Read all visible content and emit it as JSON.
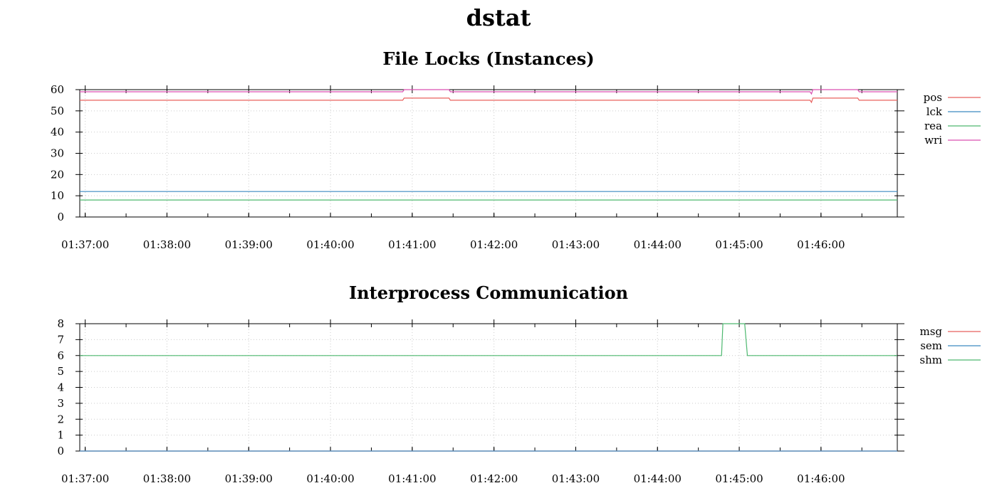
{
  "title": "dstat",
  "colors": {
    "series1": "#e8605d",
    "series2": "#3c8ac1",
    "series3": "#4db86f",
    "series4": "#d94fb0",
    "grid": "#cccccc"
  },
  "chart_data": [
    {
      "type": "line",
      "title": "File Locks (Instances)",
      "xlabel": "",
      "ylabel": "",
      "ylim": [
        0,
        60
      ],
      "yticks": [
        0,
        10,
        20,
        30,
        40,
        50,
        60
      ],
      "xlim": [
        "01:36:56",
        "01:46:56"
      ],
      "xticks": [
        "01:37:00",
        "01:38:00",
        "01:39:00",
        "01:40:00",
        "01:41:00",
        "01:42:00",
        "01:43:00",
        "01:44:00",
        "01:45:00",
        "01:46:00"
      ],
      "grid": true,
      "legend_position": "right",
      "series": [
        {
          "name": "pos",
          "color": "#e8605d",
          "x": [
            "01:36:56",
            "01:40:53",
            "01:40:54",
            "01:41:27",
            "01:41:28",
            "01:45:52",
            "01:45:53",
            "01:45:54",
            "01:46:27",
            "01:46:28",
            "01:46:56"
          ],
          "y": [
            55,
            55,
            56,
            56,
            55,
            55,
            54,
            56,
            56,
            55,
            55
          ]
        },
        {
          "name": "lck",
          "color": "#3c8ac1",
          "x": [
            "01:36:56",
            "01:46:56"
          ],
          "y": [
            12,
            12
          ]
        },
        {
          "name": "rea",
          "color": "#4db86f",
          "x": [
            "01:36:56",
            "01:46:56"
          ],
          "y": [
            8,
            8
          ]
        },
        {
          "name": "wri",
          "color": "#d94fb0",
          "x": [
            "01:36:56",
            "01:40:53",
            "01:40:54",
            "01:41:27",
            "01:41:28",
            "01:45:52",
            "01:45:53",
            "01:45:54",
            "01:46:27",
            "01:46:28",
            "01:46:56"
          ],
          "y": [
            59,
            59,
            60,
            60,
            59,
            59,
            58,
            60,
            60,
            59,
            59
          ]
        }
      ]
    },
    {
      "type": "line",
      "title": "Interprocess Communication",
      "xlabel": "",
      "ylabel": "",
      "ylim": [
        0,
        8
      ],
      "yticks": [
        0,
        1,
        2,
        3,
        4,
        5,
        6,
        7,
        8
      ],
      "xlim": [
        "01:36:56",
        "01:46:56"
      ],
      "xticks": [
        "01:37:00",
        "01:38:00",
        "01:39:00",
        "01:40:00",
        "01:41:00",
        "01:42:00",
        "01:43:00",
        "01:44:00",
        "01:45:00",
        "01:46:00"
      ],
      "grid": true,
      "legend_position": "right",
      "series": [
        {
          "name": "msg",
          "color": "#e8605d",
          "x": [
            "01:36:56",
            "01:46:56"
          ],
          "y": [
            0,
            0
          ]
        },
        {
          "name": "sem",
          "color": "#3c8ac1",
          "x": [
            "01:36:56",
            "01:46:56"
          ],
          "y": [
            0,
            0
          ]
        },
        {
          "name": "shm",
          "color": "#4db86f",
          "x": [
            "01:36:56",
            "01:44:47",
            "01:44:48",
            "01:45:04",
            "01:45:06",
            "01:46:56"
          ],
          "y": [
            6,
            6,
            8,
            8,
            6,
            6
          ]
        }
      ]
    }
  ]
}
